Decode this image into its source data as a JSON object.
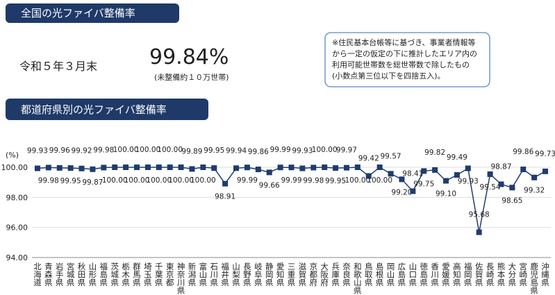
{
  "header": {
    "title": "全国の光ファイバ整備率",
    "date": "令和５年３月末",
    "rate": "99.84%",
    "rate_note": "(未整備約１０万世帯)",
    "note": [
      "※住民基本台帳等に基づき、事業者情報等",
      "から一定の仮定の下に推計したエリア内の",
      "利用可能世帯数を総世帯数で除したもの",
      "(小数点第三位以下を四捨五入)。"
    ]
  },
  "chart_data": {
    "type": "line",
    "title": "都道府県別の光ファイバ整備率",
    "y_label": "(%)",
    "color": "#1f3c6e",
    "categories": [
      "北海道",
      "青森県",
      "岩手県",
      "宮城県",
      "秋田県",
      "山形県",
      "福島県",
      "茨城県",
      "栃木県",
      "群馬県",
      "埼玉県",
      "千葉県",
      "東京都",
      "神奈川県",
      "新潟県",
      "富山県",
      "石川県",
      "福井県",
      "山梨県",
      "長野県",
      "岐阜県",
      "静岡県",
      "愛知県",
      "三重県",
      "滋賀県",
      "京都府",
      "大阪府",
      "兵庫県",
      "奈良県",
      "和歌山県",
      "鳥取県",
      "島根県",
      "岡山県",
      "広島県",
      "山口県",
      "徳島県",
      "香川県",
      "愛媛県",
      "高知県",
      "福岡県",
      "佐賀県",
      "長崎県",
      "熊本県",
      "大分県",
      "宮崎県",
      "鹿児島県",
      "沖縄県"
    ],
    "values": [
      99.93,
      99.98,
      99.96,
      99.95,
      99.92,
      99.87,
      99.98,
      100,
      100,
      100,
      100,
      100,
      100,
      100,
      99.89,
      100,
      99.95,
      98.91,
      99.94,
      99.99,
      99.86,
      99.66,
      99.99,
      99.99,
      99.93,
      99.98,
      100,
      99.95,
      99.97,
      100,
      99.42,
      100,
      99.57,
      99.2,
      98.41,
      99.75,
      99.82,
      99.1,
      99.49,
      99.93,
      95.68,
      99.54,
      98.87,
      98.65,
      99.86,
      99.32,
      99.73
    ],
    "value_labels": [
      "99.93",
      "99.98",
      "99.96",
      "99.95",
      "99.92",
      "99.87",
      "99.98",
      "100.00",
      "100.00",
      "100.00",
      "100.00",
      "100.00",
      "100.00",
      "100.00",
      "99.89",
      "100.00",
      "99.95",
      "98.91",
      "99.94",
      "99.99",
      "99.86",
      "99.66",
      "99.99",
      "99.99",
      "99.93",
      "99.98",
      "100.00",
      "99.95",
      "99.97",
      "100.00",
      "99.42",
      "100.00",
      "99.57",
      "99.20",
      "98.41",
      "99.75",
      "99.82",
      "99.10",
      "99.49",
      "99.93",
      "95.68",
      "99.54",
      "98.87",
      "98.65",
      "99.86",
      "99.32",
      "99.73"
    ],
    "ylim": [
      94,
      100
    ],
    "yticks": [
      {
        "value": 94,
        "label": "94.00"
      },
      {
        "value": 96,
        "label": "96.00"
      },
      {
        "value": 98,
        "label": "98.00"
      },
      {
        "value": 100,
        "label": "100.00"
      }
    ],
    "grid": true
  }
}
